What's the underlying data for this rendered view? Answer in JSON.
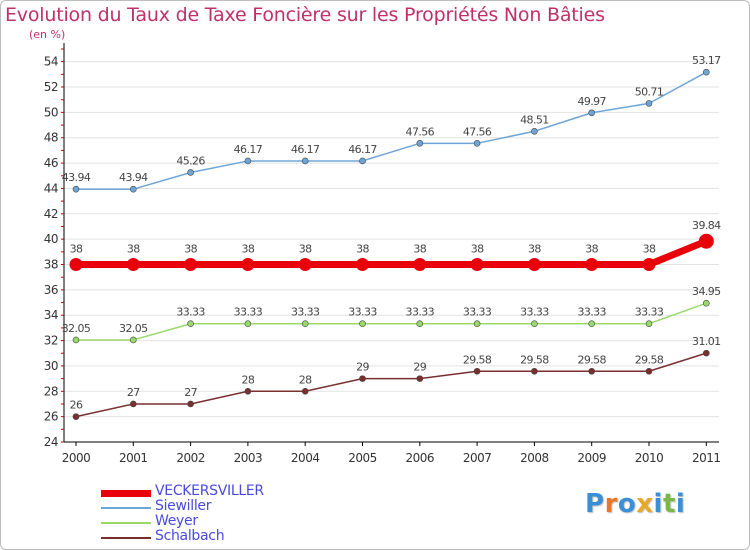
{
  "title": "Evolution du Taux de Taxe Foncière sur les Propriétés Non Bâties",
  "subtitle": "(en %)",
  "logo": {
    "text": "Proxiti",
    "colors": [
      "#3b8fd6",
      "#e8762b",
      "#3b8fd6",
      "#e8a92b",
      "#3b8fd6",
      "#7ab648",
      "#3b8fd6"
    ]
  },
  "chart_data": {
    "type": "line",
    "title": "Evolution du Taux de Taxe Foncière sur les Propriétés Non Bâties",
    "ylabel": "(en %)",
    "xlabel": "",
    "categories": [
      "2000",
      "2001",
      "2002",
      "2003",
      "2004",
      "2005",
      "2006",
      "2007",
      "2008",
      "2009",
      "2010",
      "2011"
    ],
    "ylim": [
      24,
      55
    ],
    "yticks": [
      24,
      26,
      28,
      30,
      32,
      34,
      36,
      38,
      40,
      42,
      44,
      46,
      48,
      50,
      52,
      54
    ],
    "grid": "horizontal",
    "legend_position": "bottom-left",
    "series": [
      {
        "name": "VECKERSVILLER",
        "color": "#e8000b",
        "values": [
          38,
          38,
          38,
          38,
          38,
          38,
          38,
          38,
          38,
          38,
          38,
          39.84
        ],
        "labels": [
          "38",
          "38",
          "38",
          "38",
          "38",
          "38",
          "38",
          "38",
          "38",
          "38",
          "38",
          "39.84"
        ]
      },
      {
        "name": "Siewiller",
        "color": "#6fa5d6",
        "values": [
          43.94,
          43.94,
          45.26,
          46.17,
          46.17,
          46.17,
          47.56,
          47.56,
          48.51,
          49.97,
          50.71,
          53.17
        ],
        "labels": [
          "43.94",
          "43.94",
          "45.26",
          "46.17",
          "46.17",
          "46.17",
          "47.56",
          "47.56",
          "48.51",
          "49.97",
          "50.71",
          "53.17"
        ]
      },
      {
        "name": "Weyer",
        "color": "#99d86a",
        "values": [
          32.05,
          32.05,
          33.33,
          33.33,
          33.33,
          33.33,
          33.33,
          33.33,
          33.33,
          33.33,
          33.33,
          34.95
        ],
        "labels": [
          "32.05",
          "32.05",
          "33.33",
          "33.33",
          "33.33",
          "33.33",
          "33.33",
          "33.33",
          "33.33",
          "33.33",
          "33.33",
          "34.95"
        ]
      },
      {
        "name": "Schalbach",
        "color": "#7a2f2f",
        "values": [
          26,
          27,
          27,
          28,
          28,
          29,
          29,
          29.58,
          29.58,
          29.58,
          29.58,
          31.01
        ],
        "labels": [
          "26",
          "27",
          "27",
          "28",
          "28",
          "29",
          "29",
          "29.58",
          "29.58",
          "29.58",
          "29.58",
          "31.01"
        ]
      }
    ]
  }
}
